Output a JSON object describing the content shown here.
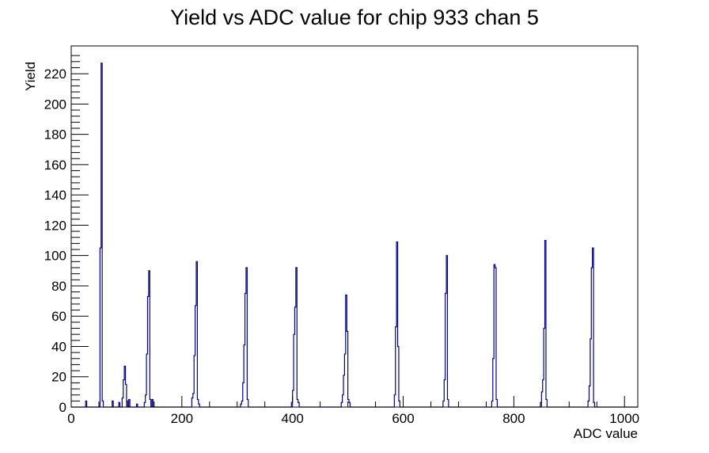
{
  "title": "Yield vs ADC value for chip 933 chan 5",
  "colors": {
    "hist_line": "#00008b",
    "axis": "#000000",
    "background": "#ffffff"
  },
  "chart_data": {
    "type": "bar",
    "subtype": "step-histogram",
    "title": "Yield vs ADC value for chip 933 chan 5",
    "xlabel": "ADC value",
    "ylabel": "Yield",
    "xlim": [
      0,
      1024
    ],
    "ylim": [
      0,
      238.35
    ],
    "grid": false,
    "legend": "none",
    "bin_width": 2,
    "x_major_ticks": [
      0,
      200,
      400,
      600,
      800,
      1000
    ],
    "x_tick_labels": [
      "0",
      "200",
      "400",
      "600",
      "800",
      "1000"
    ],
    "x_minor_step": 50,
    "y_major_ticks": [
      0,
      20,
      40,
      60,
      80,
      100,
      120,
      140,
      160,
      180,
      200,
      220
    ],
    "y_tick_labels": [
      "0",
      "20",
      "40",
      "60",
      "80",
      "100",
      "120",
      "140",
      "160",
      "180",
      "200",
      "220"
    ],
    "y_minor_step": 4,
    "peaks_adc": [
      55,
      96,
      140,
      226,
      316,
      407,
      497,
      589,
      678,
      765,
      856,
      941
    ],
    "peak_heights": [
      227,
      27,
      90,
      96,
      92,
      92,
      74,
      109,
      100,
      94,
      110,
      105
    ],
    "bins": [
      [
        26,
        4
      ],
      [
        52,
        105
      ],
      [
        54,
        227
      ],
      [
        56,
        4
      ],
      [
        74,
        4
      ],
      [
        86,
        3
      ],
      [
        92,
        6
      ],
      [
        94,
        18
      ],
      [
        96,
        27
      ],
      [
        98,
        15
      ],
      [
        100,
        4
      ],
      [
        104,
        5
      ],
      [
        118,
        2
      ],
      [
        132,
        3
      ],
      [
        134,
        8
      ],
      [
        136,
        35
      ],
      [
        138,
        73
      ],
      [
        140,
        90
      ],
      [
        142,
        5
      ],
      [
        146,
        5
      ],
      [
        218,
        6
      ],
      [
        220,
        9
      ],
      [
        222,
        34
      ],
      [
        224,
        67
      ],
      [
        226,
        96
      ],
      [
        228,
        5
      ],
      [
        230,
        2
      ],
      [
        306,
        2
      ],
      [
        308,
        4
      ],
      [
        310,
        16
      ],
      [
        312,
        41
      ],
      [
        314,
        75
      ],
      [
        316,
        92
      ],
      [
        318,
        5
      ],
      [
        398,
        3
      ],
      [
        400,
        11
      ],
      [
        402,
        48
      ],
      [
        404,
        66
      ],
      [
        406,
        92
      ],
      [
        408,
        5
      ],
      [
        410,
        3
      ],
      [
        488,
        3
      ],
      [
        490,
        8
      ],
      [
        492,
        21
      ],
      [
        494,
        35
      ],
      [
        496,
        74
      ],
      [
        498,
        50
      ],
      [
        500,
        5
      ],
      [
        502,
        3
      ],
      [
        584,
        8
      ],
      [
        586,
        53
      ],
      [
        588,
        109
      ],
      [
        590,
        40
      ],
      [
        592,
        4
      ],
      [
        672,
        4
      ],
      [
        674,
        18
      ],
      [
        676,
        75
      ],
      [
        678,
        100
      ],
      [
        680,
        5
      ],
      [
        760,
        4
      ],
      [
        762,
        32
      ],
      [
        764,
        94
      ],
      [
        766,
        92
      ],
      [
        768,
        5
      ],
      [
        848,
        3
      ],
      [
        850,
        10
      ],
      [
        852,
        18
      ],
      [
        854,
        52
      ],
      [
        856,
        110
      ],
      [
        858,
        5
      ],
      [
        934,
        4
      ],
      [
        936,
        14
      ],
      [
        938,
        45
      ],
      [
        940,
        92
      ],
      [
        942,
        105
      ],
      [
        944,
        3
      ]
    ]
  }
}
